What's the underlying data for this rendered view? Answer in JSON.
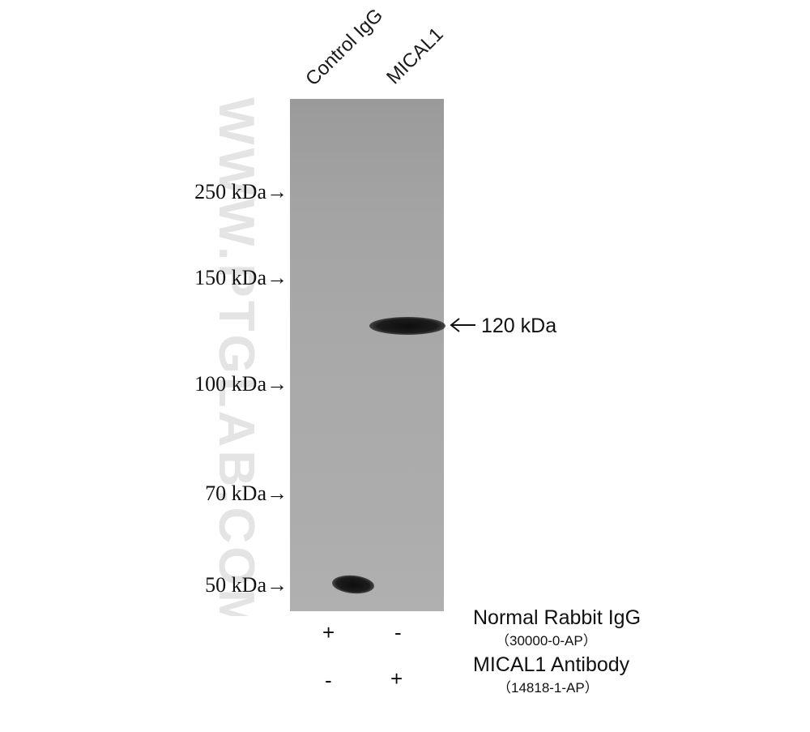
{
  "lanes": [
    "Control IgG",
    "MICAL1"
  ],
  "markers": [
    "250 kDa→",
    "150 kDa→",
    "100 kDa→",
    "70 kDa→",
    "50 kDa→"
  ],
  "band_label": "120 kDa",
  "watermark": "WWW.PTGLAB.COM",
  "rows": [
    {
      "name": "Normal Rabbit IgG",
      "catalog": "（30000-0-AP）",
      "lane1": "+",
      "lane2": "-"
    },
    {
      "name": "MICAL1 Antibody",
      "catalog": "（14818-1-AP）",
      "lane1": "-",
      "lane2": "+"
    }
  ]
}
